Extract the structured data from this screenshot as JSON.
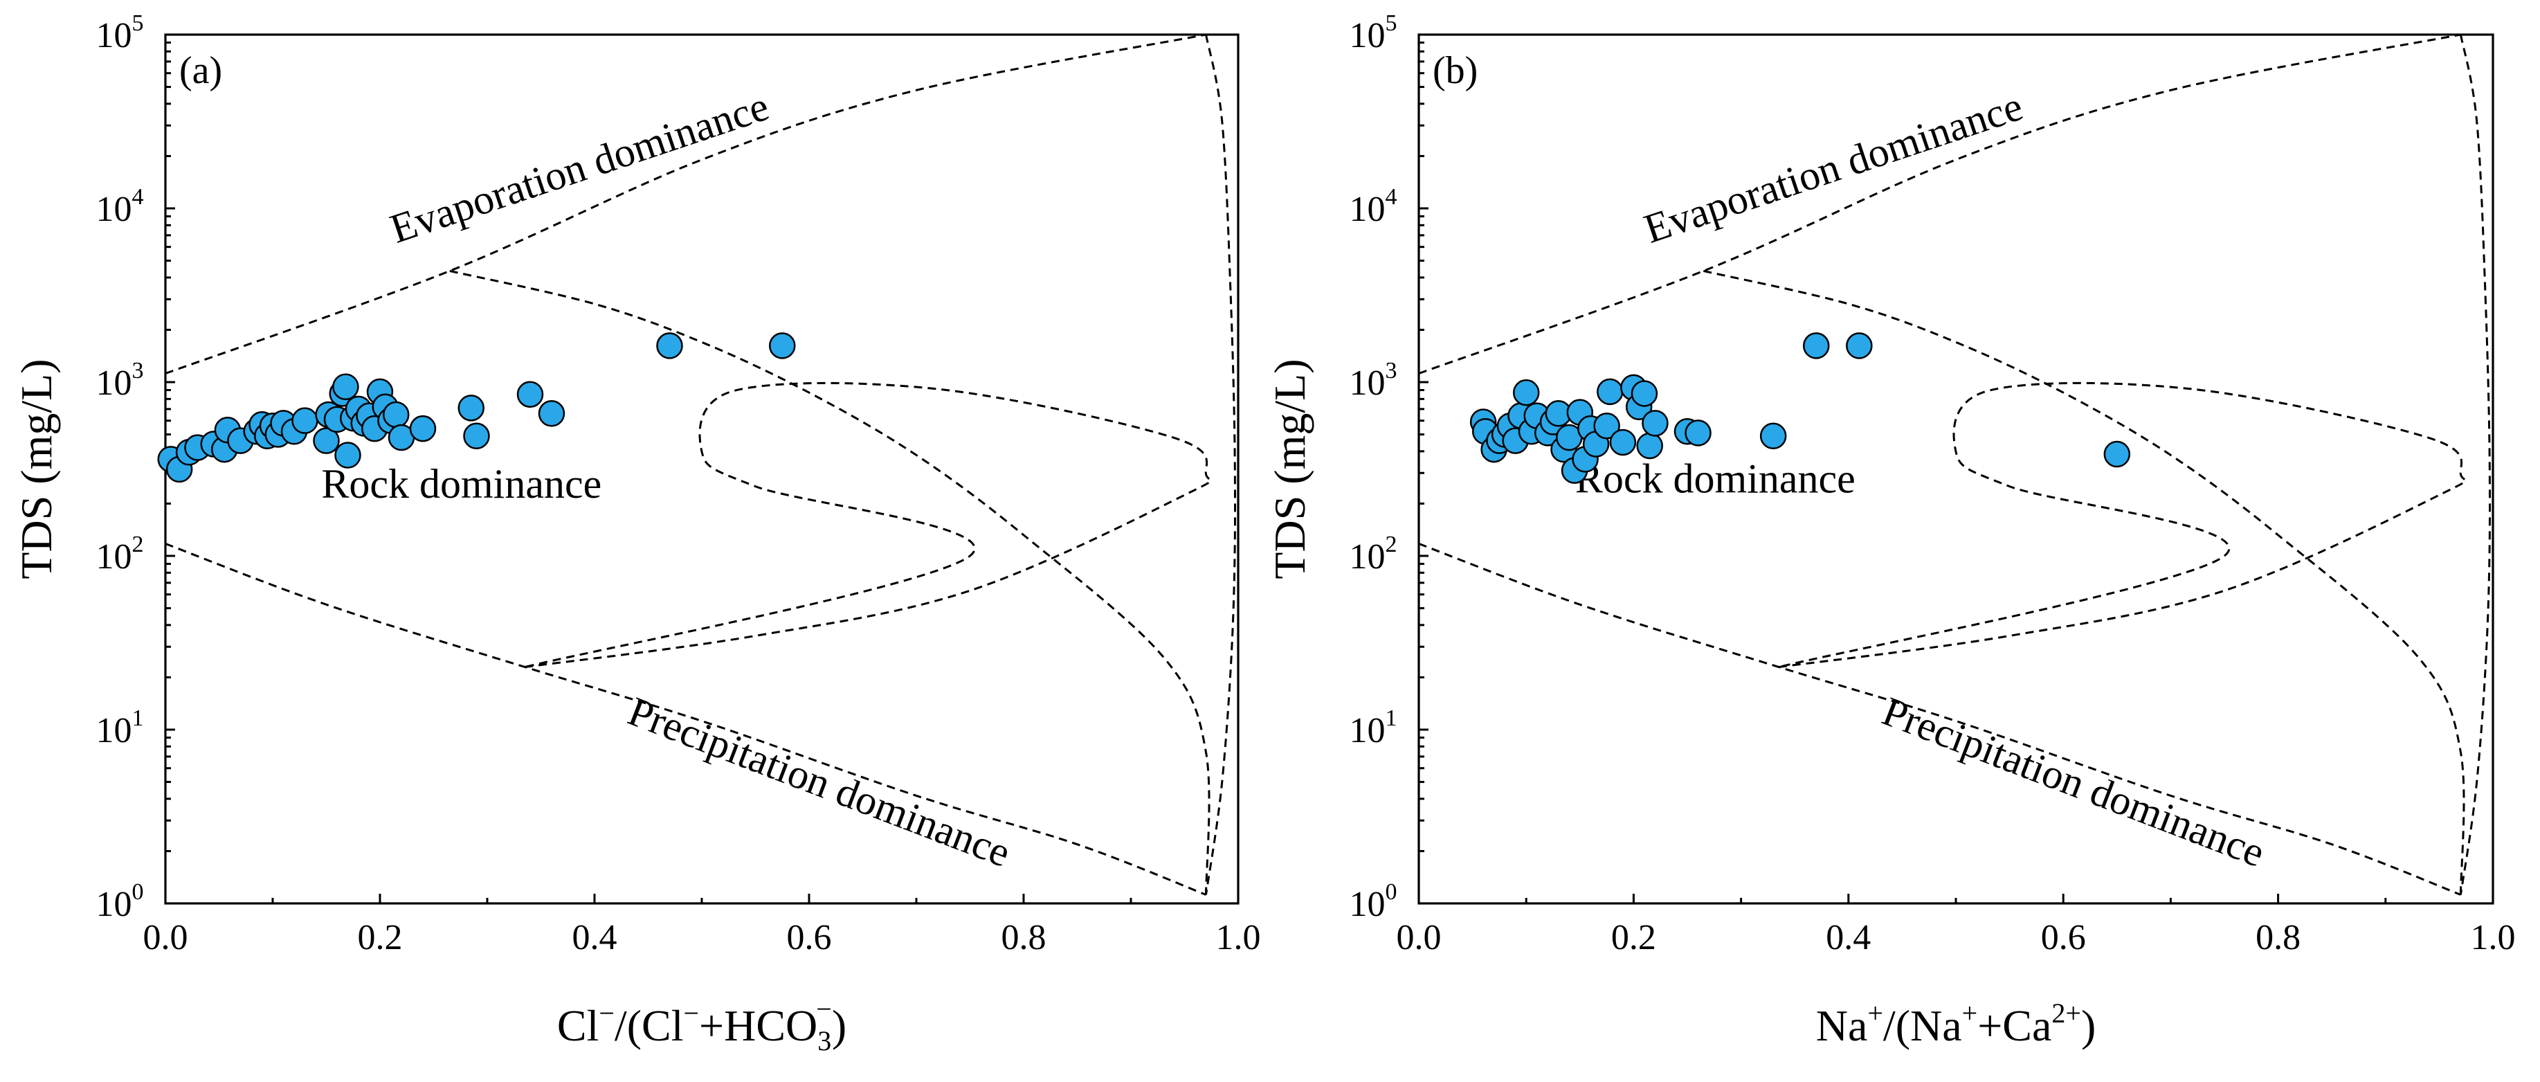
{
  "chart_data": [
    {
      "type": "scatter",
      "panel_label": "(a)",
      "xlabel": {
        "base": "Cl",
        "sup1": "−",
        "mid": "/(Cl",
        "sup2": "−",
        "mid2": "+HCO",
        "sub": "3",
        "sup3": "−",
        "end": ")"
      },
      "ylabel": "TDS (mg/L)",
      "xlim": [
        0.0,
        1.0
      ],
      "ylim_log10": [
        0,
        5
      ],
      "y_scale": "log",
      "x_ticks": [
        "0.0",
        "0.2",
        "0.4",
        "0.6",
        "0.8",
        "1.0"
      ],
      "y_ticks": [
        {
          "base": "10",
          "exp": "0"
        },
        {
          "base": "10",
          "exp": "1"
        },
        {
          "base": "10",
          "exp": "2"
        },
        {
          "base": "10",
          "exp": "3"
        },
        {
          "base": "10",
          "exp": "4"
        },
        {
          "base": "10",
          "exp": "5"
        }
      ],
      "annotations": {
        "evaporation": "Evaporation dominance",
        "rock": "Rock dominance",
        "precipitation": "Precipitation dominance"
      },
      "marker_color": "#29a7e8",
      "points": [
        {
          "x": 0.005,
          "y": 360
        },
        {
          "x": 0.013,
          "y": 315
        },
        {
          "x": 0.022,
          "y": 395
        },
        {
          "x": 0.03,
          "y": 420
        },
        {
          "x": 0.045,
          "y": 440
        },
        {
          "x": 0.055,
          "y": 410
        },
        {
          "x": 0.058,
          "y": 530
        },
        {
          "x": 0.07,
          "y": 460
        },
        {
          "x": 0.085,
          "y": 520
        },
        {
          "x": 0.09,
          "y": 570
        },
        {
          "x": 0.095,
          "y": 490
        },
        {
          "x": 0.1,
          "y": 560
        },
        {
          "x": 0.105,
          "y": 500
        },
        {
          "x": 0.11,
          "y": 580
        },
        {
          "x": 0.12,
          "y": 520
        },
        {
          "x": 0.13,
          "y": 600
        },
        {
          "x": 0.15,
          "y": 460
        },
        {
          "x": 0.152,
          "y": 650
        },
        {
          "x": 0.16,
          "y": 610
        },
        {
          "x": 0.165,
          "y": 860
        },
        {
          "x": 0.168,
          "y": 940
        },
        {
          "x": 0.17,
          "y": 380
        },
        {
          "x": 0.175,
          "y": 620
        },
        {
          "x": 0.18,
          "y": 700
        },
        {
          "x": 0.185,
          "y": 580
        },
        {
          "x": 0.19,
          "y": 640
        },
        {
          "x": 0.195,
          "y": 540
        },
        {
          "x": 0.2,
          "y": 880
        },
        {
          "x": 0.205,
          "y": 720
        },
        {
          "x": 0.21,
          "y": 600
        },
        {
          "x": 0.215,
          "y": 650
        },
        {
          "x": 0.22,
          "y": 480
        },
        {
          "x": 0.24,
          "y": 540
        },
        {
          "x": 0.285,
          "y": 710
        },
        {
          "x": 0.29,
          "y": 490
        },
        {
          "x": 0.34,
          "y": 850
        },
        {
          "x": 0.36,
          "y": 660
        },
        {
          "x": 0.47,
          "y": 1620
        },
        {
          "x": 0.575,
          "y": 1620
        }
      ]
    },
    {
      "type": "scatter",
      "panel_label": "(b)",
      "xlabel": {
        "base": "Na",
        "sup1": "+",
        "mid": "/(Na",
        "sup2": "+",
        "mid2": "+Ca",
        "sup3": "2+",
        "end": ")"
      },
      "ylabel": "TDS (mg/L)",
      "xlim": [
        0.0,
        1.0
      ],
      "ylim_log10": [
        0,
        5
      ],
      "y_scale": "log",
      "x_ticks": [
        "0.0",
        "0.2",
        "0.4",
        "0.6",
        "0.8",
        "1.0"
      ],
      "y_ticks": [
        {
          "base": "10",
          "exp": "0"
        },
        {
          "base": "10",
          "exp": "1"
        },
        {
          "base": "10",
          "exp": "2"
        },
        {
          "base": "10",
          "exp": "3"
        },
        {
          "base": "10",
          "exp": "4"
        },
        {
          "base": "10",
          "exp": "5"
        }
      ],
      "annotations": {
        "evaporation": "Evaporation dominance",
        "rock": "Rock dominance",
        "precipitation": "Precipitation dominance"
      },
      "marker_color": "#29a7e8",
      "points": [
        {
          "x": 0.06,
          "y": 590
        },
        {
          "x": 0.062,
          "y": 520
        },
        {
          "x": 0.07,
          "y": 410
        },
        {
          "x": 0.075,
          "y": 460
        },
        {
          "x": 0.08,
          "y": 500
        },
        {
          "x": 0.085,
          "y": 560
        },
        {
          "x": 0.09,
          "y": 460
        },
        {
          "x": 0.095,
          "y": 640
        },
        {
          "x": 0.1,
          "y": 870
        },
        {
          "x": 0.105,
          "y": 520
        },
        {
          "x": 0.11,
          "y": 640
        },
        {
          "x": 0.12,
          "y": 510
        },
        {
          "x": 0.125,
          "y": 590
        },
        {
          "x": 0.13,
          "y": 660
        },
        {
          "x": 0.135,
          "y": 410
        },
        {
          "x": 0.14,
          "y": 480
        },
        {
          "x": 0.145,
          "y": 310
        },
        {
          "x": 0.15,
          "y": 670
        },
        {
          "x": 0.155,
          "y": 360
        },
        {
          "x": 0.16,
          "y": 540
        },
        {
          "x": 0.165,
          "y": 440
        },
        {
          "x": 0.175,
          "y": 560
        },
        {
          "x": 0.178,
          "y": 880
        },
        {
          "x": 0.19,
          "y": 450
        },
        {
          "x": 0.2,
          "y": 930
        },
        {
          "x": 0.205,
          "y": 720
        },
        {
          "x": 0.21,
          "y": 860
        },
        {
          "x": 0.215,
          "y": 430
        },
        {
          "x": 0.22,
          "y": 580
        },
        {
          "x": 0.25,
          "y": 520
        },
        {
          "x": 0.26,
          "y": 510
        },
        {
          "x": 0.33,
          "y": 490
        },
        {
          "x": 0.37,
          "y": 1620
        },
        {
          "x": 0.41,
          "y": 1620
        },
        {
          "x": 0.65,
          "y": 385
        }
      ]
    }
  ]
}
